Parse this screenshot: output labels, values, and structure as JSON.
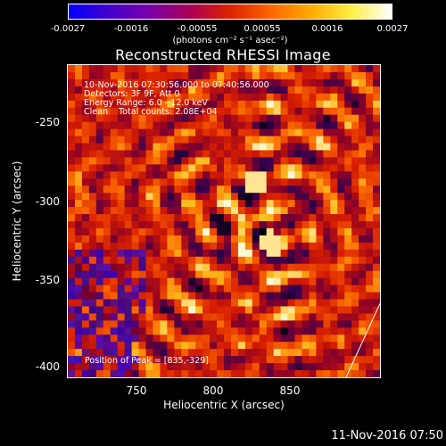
{
  "colorbar": {
    "ticks": [
      "-0.0027",
      "-0.0016",
      "-0.00055",
      "0.00055",
      "0.0016",
      "0.0027"
    ],
    "units": "(photons cm⁻² s⁻¹ asec⁻²)",
    "colors": [
      "#0000ff",
      "#4400cc",
      "#7700aa",
      "#aa0055",
      "#dd2200",
      "#ff6600",
      "#ffaa00",
      "#ffee44",
      "#ffffff"
    ]
  },
  "title": "Reconstructed RHESSI Image",
  "info": {
    "time_range": "10-Nov-2016 07:30:56.000 to 07:40:56.000",
    "detectors": "Detectors: 3F 9F, Att 0",
    "energy_range": "Energy Range: 6.0 - 12.0 keV",
    "clean": "Clean    Total counts: 2.08E+04"
  },
  "peak": "Position of Peak = [835,-329]",
  "axes": {
    "xlabel": "Heliocentric X (arcsec)",
    "ylabel": "Heliocentric Y (arcsec)",
    "xticks": [
      "750",
      "800",
      "850"
    ],
    "yticks": [
      "-250",
      "-300",
      "-350",
      "-400"
    ],
    "xlim": [
      710,
      895
    ],
    "ylim": [
      -410,
      -220
    ]
  },
  "footer": "11-Nov-2016 07:50"
}
